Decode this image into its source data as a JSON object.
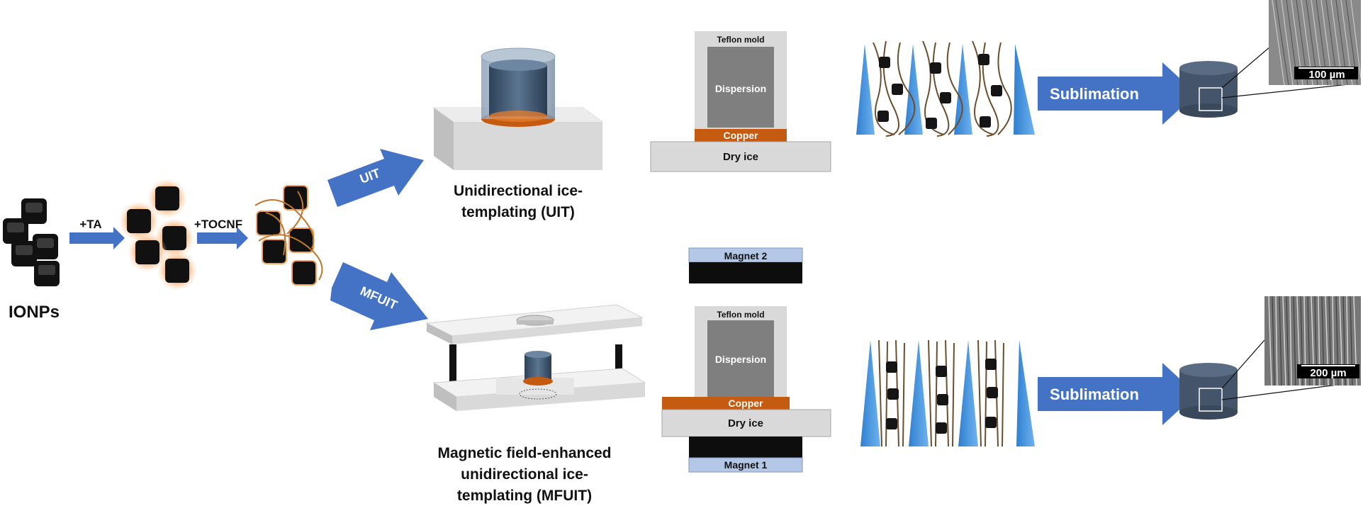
{
  "start": {
    "label": "IONPs"
  },
  "steps": {
    "ta": "+TA",
    "tocnf": "+TOCNF"
  },
  "routes": {
    "uit": {
      "arrow": "UIT",
      "caption": [
        "Unidirectional ice-",
        "templating (UIT)"
      ],
      "setup": {
        "mold": "Teflon mold",
        "sample": "Dispersion",
        "base": "Copper",
        "coolant": "Dry ice"
      },
      "process": "Sublimation",
      "scale_bar": "100 µm"
    },
    "mfuit": {
      "arrow": "MFUIT",
      "caption": [
        "Magnetic field-enhanced",
        "unidirectional ice-",
        "templating (MFUIT)"
      ],
      "setup": {
        "top_magnet": "Magnet 2",
        "mold": "Teflon mold",
        "sample": "Dispersion",
        "base": "Copper",
        "coolant": "Dry ice",
        "bottom_magnet": "Magnet 1"
      },
      "process": "Sublimation",
      "scale_bar": "200 µm"
    }
  },
  "colors": {
    "arrow": "#4472c4",
    "copper": "#c55a11",
    "magnet": "#b4c7e7",
    "gray_block": "#7f7f7f",
    "cone": "#3d8fd6",
    "cylinder": "#44546a"
  }
}
